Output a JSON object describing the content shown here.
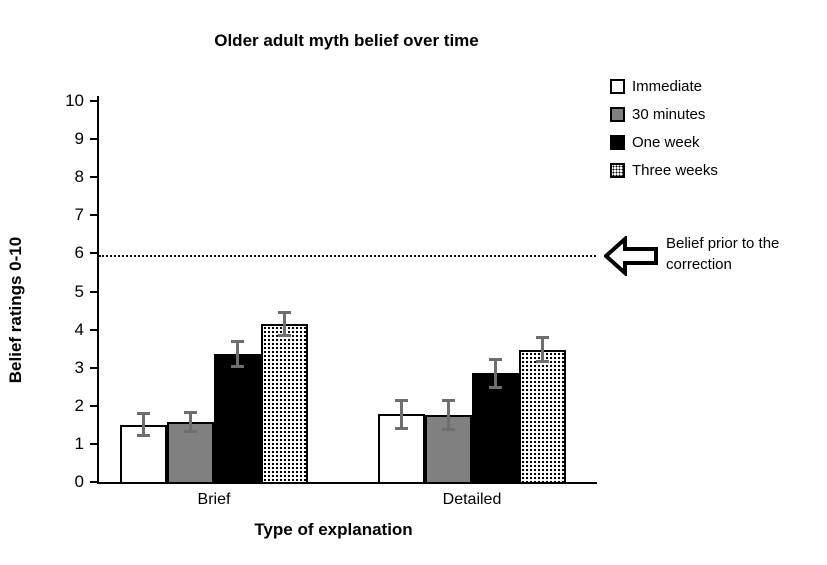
{
  "chart_data": {
    "type": "bar",
    "title": "Older adult myth belief over time",
    "xlabel": "Type of explanation",
    "ylabel": "Belief ratings 0-10",
    "ylim": [
      0,
      10
    ],
    "ytick_step": 1,
    "grid": false,
    "legend_position": "right-outside",
    "categories": [
      "Brief",
      "Detailed"
    ],
    "series": [
      {
        "name": "Immediate",
        "fill": "#ffffff",
        "pattern": "solid",
        "values": [
          1.5,
          1.78
        ],
        "errors": [
          0.33,
          0.41
        ]
      },
      {
        "name": "30 minutes",
        "fill": "#808080",
        "pattern": "solid",
        "values": [
          1.57,
          1.77
        ],
        "errors": [
          0.29,
          0.42
        ]
      },
      {
        "name": "One week",
        "fill": "#000000",
        "pattern": "solid",
        "values": [
          3.35,
          2.85
        ],
        "errors": [
          0.37,
          0.4
        ]
      },
      {
        "name": "Three weeks",
        "fill": "#ffffff",
        "pattern": "dots",
        "values": [
          4.15,
          3.47
        ],
        "errors": [
          0.34,
          0.36
        ]
      }
    ],
    "error_bar_color": "#6e6e6e",
    "axis_color": "#000000",
    "reference_line": {
      "value": 5.95,
      "style": "dotted",
      "label": "Belief prior to the correction"
    }
  }
}
